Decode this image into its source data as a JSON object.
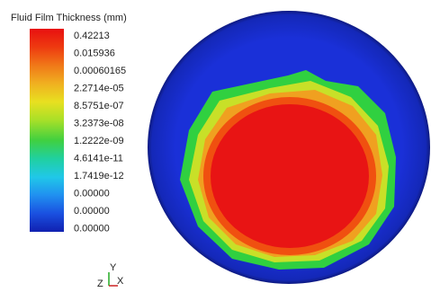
{
  "legend": {
    "title": "Fluid Film Thickness (mm)",
    "labels": [
      "0.42213",
      "0.015936",
      "0.00060165",
      "2.2714e-05",
      "8.5751e-07",
      "3.2373e-08",
      "1.2222e-09",
      "4.6141e-11",
      "1.7419e-12",
      "0.00000",
      "0.00000",
      "0.00000"
    ]
  },
  "axes_triad": {
    "y": "Y",
    "z": "Z",
    "x": "X"
  }
}
